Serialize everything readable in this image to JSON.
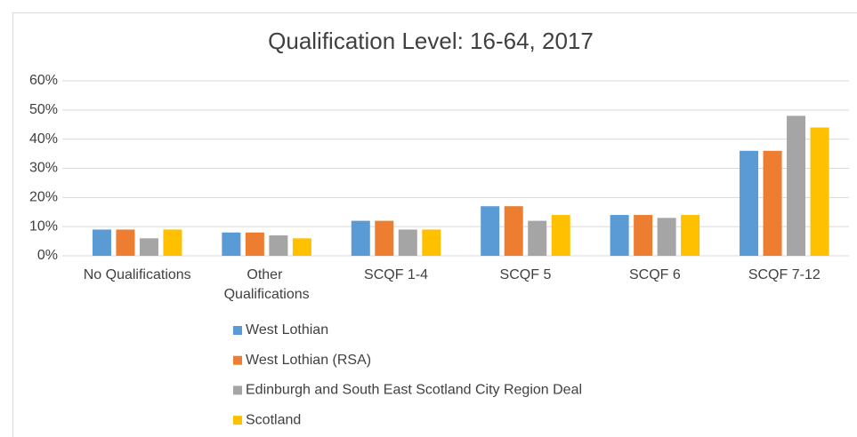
{
  "chart_data": {
    "type": "bar",
    "title": "Qualification Level: 16-64, 2017",
    "categories": [
      "No Qualifications",
      "Other Qualifications",
      "SCQF 1-4",
      "SCQF 5",
      "SCQF 6",
      "SCQF 7-12"
    ],
    "series": [
      {
        "name": "West Lothian",
        "color": "#5b9bd5",
        "values": [
          9,
          8,
          12,
          17,
          14,
          36
        ]
      },
      {
        "name": "West Lothian (RSA)",
        "color": "#ed7d31",
        "values": [
          9,
          8,
          12,
          17,
          14,
          36
        ]
      },
      {
        "name": "Edinburgh and South East Scotland City Region Deal",
        "color": "#a5a5a5",
        "values": [
          6,
          7,
          9,
          12,
          13,
          48
        ]
      },
      {
        "name": "Scotland",
        "color": "#ffc000",
        "values": [
          9,
          6,
          9,
          14,
          14,
          44
        ]
      }
    ],
    "ylim": [
      0,
      60
    ],
    "yticks": [
      {
        "value": 0,
        "label": "0%"
      },
      {
        "value": 10,
        "label": "10%"
      },
      {
        "value": 20,
        "label": "20%"
      },
      {
        "value": 30,
        "label": "30%"
      },
      {
        "value": 40,
        "label": "40%"
      },
      {
        "value": 50,
        "label": "50%"
      },
      {
        "value": 60,
        "label": "60%"
      }
    ],
    "grid": true,
    "legend": "bottom"
  }
}
